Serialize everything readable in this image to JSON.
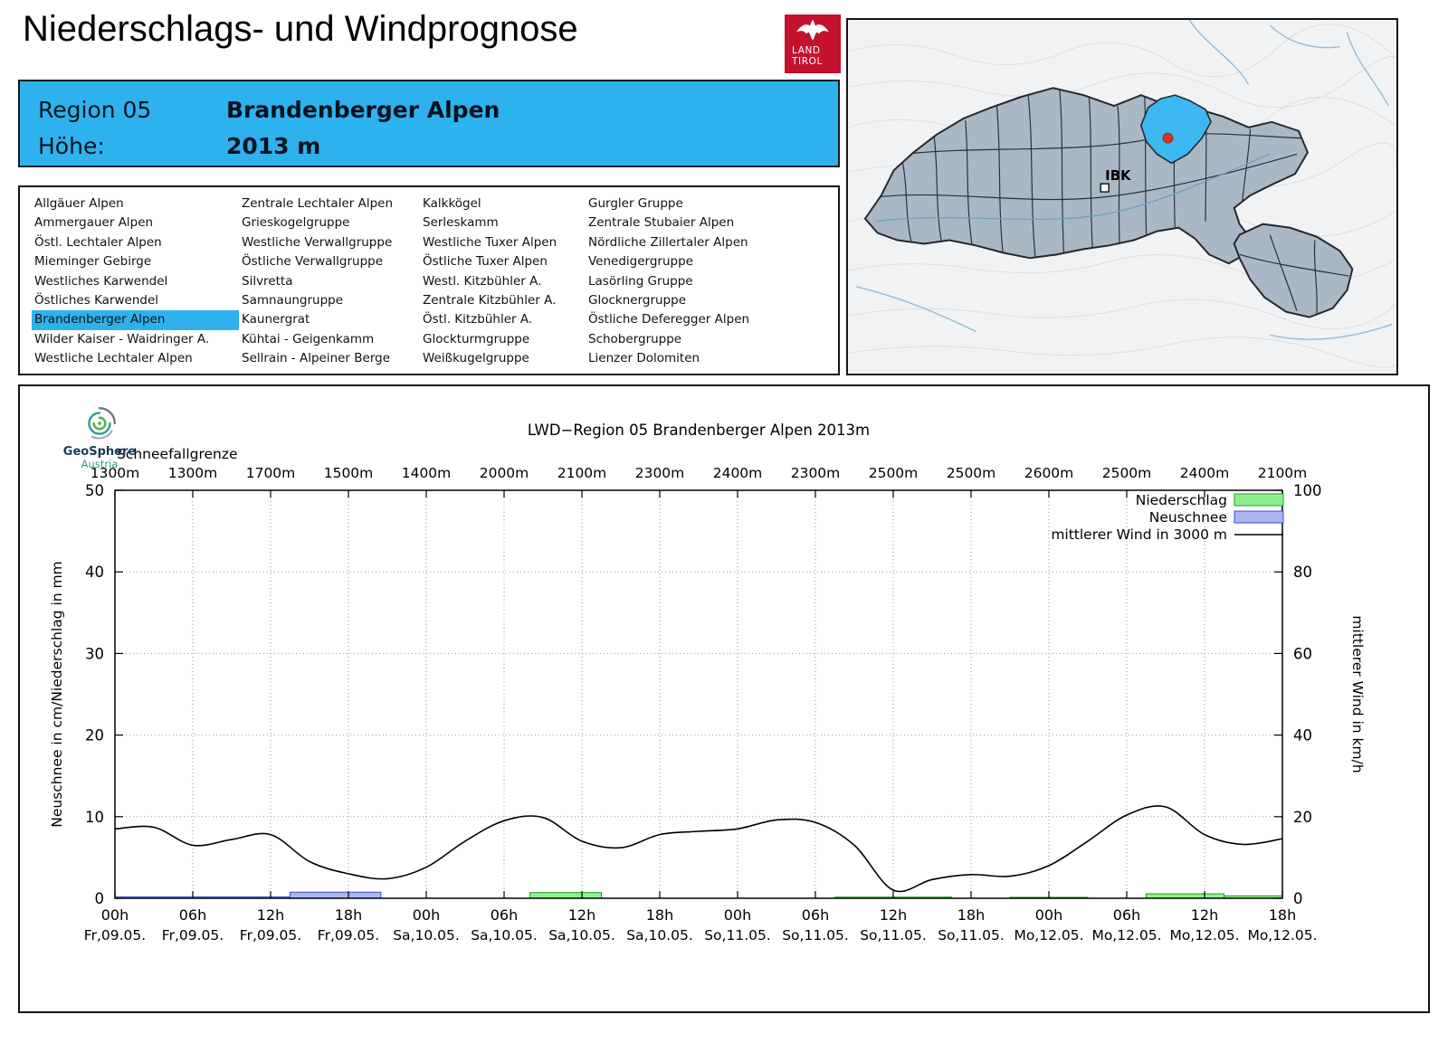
{
  "page": {
    "title": "Niederschlags- und Windprognose"
  },
  "logo": {
    "line1": "LAND",
    "line2": "TIROL"
  },
  "region_header": {
    "region_label": "Region 05",
    "region_name": "Brandenberger Alpen",
    "altitude_label": "Höhe:",
    "altitude_value": "2013 m",
    "accent_color": "#2eb2ed"
  },
  "map": {
    "city_label": "IBK",
    "highlight_color": "#3db7f0",
    "marker_color": "#e03022"
  },
  "region_list": {
    "selected": "Brandenberger Alpen",
    "columns": [
      {
        "items": [
          "Allgäuer Alpen",
          "Ammergauer Alpen",
          "Östl. Lechtaler Alpen",
          "Mieminger Gebirge",
          "Westliches Karwendel",
          "Östliches Karwendel",
          "Brandenberger Alpen",
          "Wilder Kaiser - Waidringer A.",
          "Westliche Lechtaler Alpen"
        ]
      },
      {
        "items": [
          "Zentrale Lechtaler Alpen",
          "Grieskogelgruppe",
          "Westliche Verwallgruppe",
          "Östliche Verwallgruppe",
          "Silvretta",
          "Samnaungruppe",
          "Kaunergrat",
          "Kühtai - Geigenkamm",
          "Sellrain - Alpeiner Berge"
        ]
      },
      {
        "items": [
          "Kalkkögel",
          "Serleskamm",
          "Westliche Tuxer Alpen",
          "Östliche Tuxer Alpen",
          "Westl. Kitzbühler A.",
          "Zentrale Kitzbühler A.",
          "Östl. Kitzbühler A.",
          "Glockturmgruppe",
          "Weißkugelgruppe"
        ]
      },
      {
        "items": [
          "Gurgler Gruppe",
          "Zentrale Stubaier Alpen",
          "Nördliche Zillertaler Alpen",
          "Venedigergruppe",
          "Lasörling Gruppe",
          "Glocknergruppe",
          "Östliche Deferegger Alpen",
          "Schobergruppe",
          "Lienzer Dolomiten"
        ]
      }
    ]
  },
  "geosphere": {
    "name": "GeoSphere",
    "sub": "Austria"
  },
  "chart_data": {
    "type": "composite",
    "title": "LWD−Region 05 Brandenberger Alpen 2013m",
    "snowline_label": "Schneefallgrenze",
    "snowline_values": [
      "1300m",
      "1300m",
      "1700m",
      "1500m",
      "1400m",
      "2000m",
      "2100m",
      "2300m",
      "2400m",
      "2300m",
      "2500m",
      "2500m",
      "2600m",
      "2500m",
      "2400m",
      "2100m"
    ],
    "left_axis": {
      "label": "Neuschnee in cm/Niederschlag in mm",
      "min": 0,
      "max": 50,
      "ticks": [
        0,
        10,
        20,
        30,
        40,
        50
      ]
    },
    "right_axis": {
      "label": "mittlerer Wind in km/h",
      "min": 0,
      "max": 100,
      "ticks": [
        0,
        20,
        40,
        60,
        80,
        100
      ]
    },
    "x_axis": {
      "hours_total": 90,
      "tick_step_h": 6,
      "ticks": [
        {
          "time": "00h",
          "date": "Fr,09.05."
        },
        {
          "time": "06h",
          "date": "Fr,09.05."
        },
        {
          "time": "12h",
          "date": "Fr,09.05."
        },
        {
          "time": "18h",
          "date": "Fr,09.05."
        },
        {
          "time": "00h",
          "date": "Sa,10.05."
        },
        {
          "time": "06h",
          "date": "Sa,10.05."
        },
        {
          "time": "12h",
          "date": "Sa,10.05."
        },
        {
          "time": "18h",
          "date": "Sa,10.05."
        },
        {
          "time": "00h",
          "date": "So,11.05."
        },
        {
          "time": "06h",
          "date": "So,11.05."
        },
        {
          "time": "12h",
          "date": "So,11.05."
        },
        {
          "time": "18h",
          "date": "So,11.05."
        },
        {
          "time": "00h",
          "date": "Mo,12.05."
        },
        {
          "time": "06h",
          "date": "Mo,12.05."
        },
        {
          "time": "12h",
          "date": "Mo,12.05."
        },
        {
          "time": "18h",
          "date": "Mo,12.05."
        }
      ]
    },
    "legend": [
      {
        "name": "Niederschlag",
        "type": "bar",
        "fill": "#90ee90",
        "stroke": "#1ca01c"
      },
      {
        "name": "Neuschnee",
        "type": "bar",
        "fill": "#aab4f0",
        "stroke": "#3c50c8"
      },
      {
        "name": "mittlerer Wind in 3000 m",
        "type": "line",
        "stroke": "#000000"
      }
    ],
    "series": {
      "niederschlag": {
        "unit": "mm",
        "axis": "left",
        "segments": [
          [
            32,
            37.5,
            0.7
          ],
          [
            55.5,
            64.5,
            0.15
          ],
          [
            69,
            75,
            0.12
          ],
          [
            79.5,
            85.5,
            0.55
          ],
          [
            85.5,
            90,
            0.3
          ]
        ]
      },
      "neuschnee": {
        "unit": "cm",
        "axis": "left",
        "segments": [
          [
            0,
            13.5,
            0.18
          ],
          [
            13.5,
            20.5,
            0.75
          ]
        ]
      },
      "wind": {
        "unit": "km/h",
        "axis": "right",
        "points": [
          [
            0,
            17
          ],
          [
            3,
            17.4
          ],
          [
            6,
            13
          ],
          [
            9,
            14.4
          ],
          [
            12,
            15.6
          ],
          [
            15,
            9
          ],
          [
            18,
            6
          ],
          [
            21,
            4.8
          ],
          [
            24,
            7.6
          ],
          [
            27,
            14
          ],
          [
            30,
            19
          ],
          [
            33,
            19.8
          ],
          [
            36,
            14
          ],
          [
            39,
            12.4
          ],
          [
            42,
            15.6
          ],
          [
            45,
            16.4
          ],
          [
            48,
            17
          ],
          [
            51,
            19.2
          ],
          [
            54,
            18.6
          ],
          [
            57,
            13
          ],
          [
            60,
            2
          ],
          [
            63,
            4.6
          ],
          [
            66,
            5.8
          ],
          [
            69,
            5.4
          ],
          [
            72,
            8
          ],
          [
            75,
            14
          ],
          [
            78,
            20.4
          ],
          [
            81,
            22.4
          ],
          [
            84,
            15.6
          ],
          [
            87,
            13.2
          ],
          [
            90,
            14.6
          ]
        ]
      }
    }
  }
}
